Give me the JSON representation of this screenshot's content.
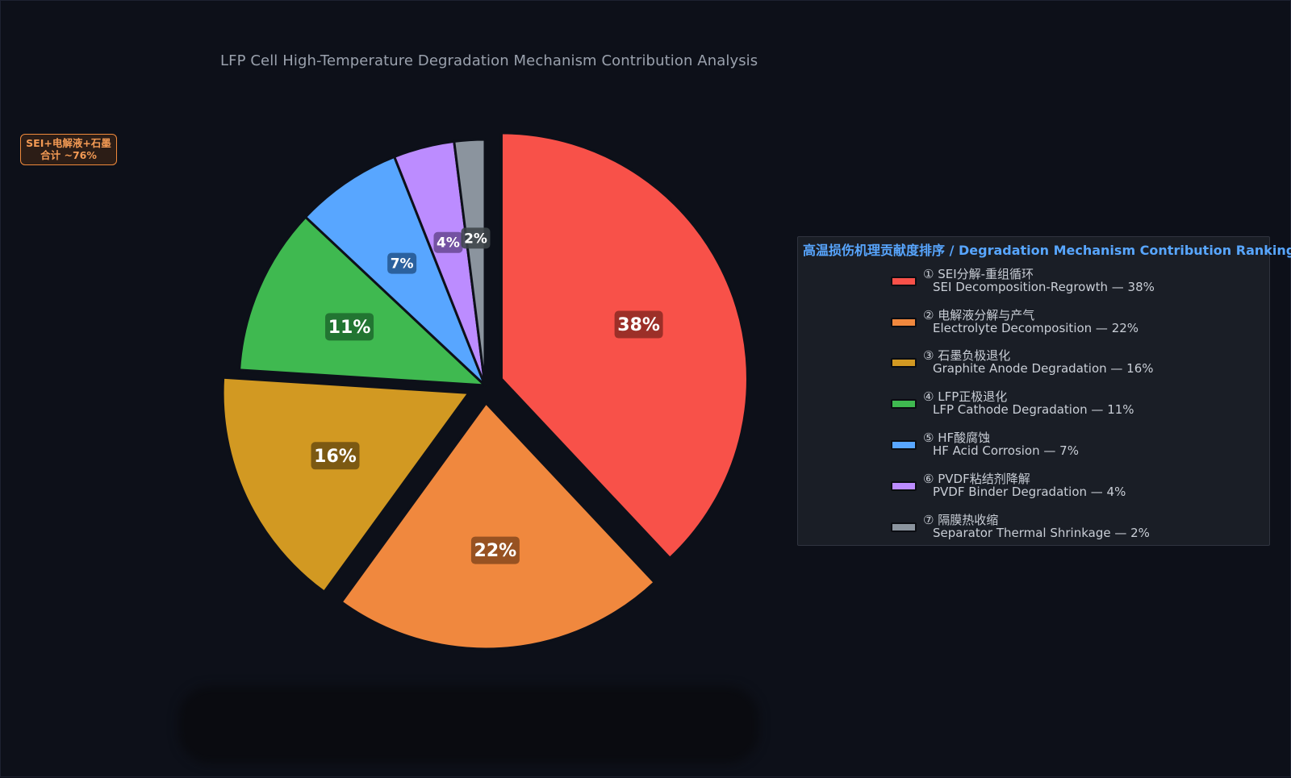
{
  "chart_data": {
    "type": "pie",
    "title": "LFP Cell High-Temperature Degradation Mechanism Contribution Analysis",
    "slices": [
      {
        "label": "SEI Decomposition-Regrowth",
        "value": 38,
        "display": "38%",
        "color": "#f85149",
        "label_bg": "#8e2a23"
      },
      {
        "label": "Electrolyte Decomposition",
        "value": 22,
        "display": "22%",
        "color": "#f0883e",
        "label_bg": "#8a4a1f"
      },
      {
        "label": "Graphite Anode Degradation",
        "value": 16,
        "display": "16%",
        "color": "#d29922",
        "label_bg": "#6f5010"
      },
      {
        "label": "LFP Cathode Degradation",
        "value": 11,
        "display": "11%",
        "color": "#3fb950",
        "label_bg": "#1f6b2d"
      },
      {
        "label": "HF Acid Corrosion",
        "value": 7,
        "display": "7%",
        "color": "#58a6ff",
        "label_bg": "#245891"
      },
      {
        "label": "PVDF Binder Degradation",
        "value": 4,
        "display": "4%",
        "color": "#bc8cff",
        "label_bg": "#6a4a95"
      },
      {
        "label": "Separator Thermal Shrinkage",
        "value": 2,
        "display": "2%",
        "color": "#8b949e",
        "label_bg": "#3e4449"
      }
    ],
    "explode": [
      true,
      true,
      true,
      false,
      false,
      false,
      false
    ],
    "start_angle": "12 o'clock, clockwise"
  },
  "annotation": {
    "line1": "SEI+电解液+石墨",
    "line2": "合计 ~76%",
    "color": "#f39a54"
  },
  "legend": {
    "title": "高温损伤机理贡献度排序 / Degradation Mechanism Contribution Ranking",
    "entries": [
      {
        "line1": "① SEI分解-重组循环",
        "line2": "SEI Decomposition-Regrowth  —  38%"
      },
      {
        "line1": "② 电解液分解与产气",
        "line2": "Electrolyte Decomposition  —  22%"
      },
      {
        "line1": "③ 石墨负极退化",
        "line2": "Graphite Anode Degradation  —  16%"
      },
      {
        "line1": "④ LFP正极退化",
        "line2": "LFP Cathode Degradation  —  11%"
      },
      {
        "line1": "⑤ HF酸腐蚀",
        "line2": "HF Acid Corrosion  —  7%"
      },
      {
        "line1": "⑥ PVDF粘结剂降解",
        "line2": "PVDF Binder Degradation  —  4%"
      },
      {
        "line1": "⑦ 隔膜热收缩",
        "line2": "Separator Thermal Shrinkage  —  2%"
      }
    ]
  }
}
